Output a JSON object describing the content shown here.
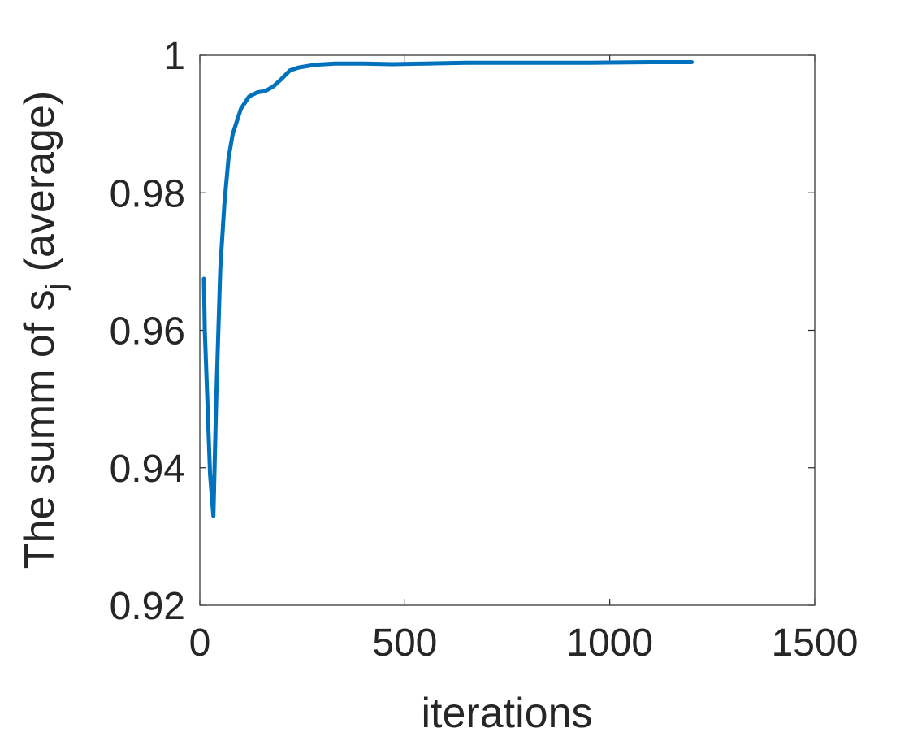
{
  "chart_data": {
    "type": "line",
    "title": "",
    "xlabel": "iterations",
    "ylabel_main": "The summ of s",
    "ylabel_sub": "j",
    "ylabel_tail": " (average)",
    "xlim": [
      0,
      1500
    ],
    "ylim": [
      0.92,
      1.0
    ],
    "xticks": [
      0,
      500,
      1000,
      1500
    ],
    "xtick_labels": [
      "0",
      "500",
      "1000",
      "1500"
    ],
    "yticks": [
      0.92,
      0.94,
      0.96,
      0.98,
      1.0
    ],
    "ytick_labels": [
      "0.92",
      "0.94",
      "0.96",
      "0.98",
      "1"
    ],
    "grid": false,
    "series_color": "#0072BD",
    "series": [
      {
        "x": [
          10,
          12,
          25,
          33,
          40,
          50,
          60,
          70,
          80,
          100,
          120,
          140,
          160,
          180,
          200,
          220,
          240,
          280,
          330,
          400,
          470,
          550,
          650,
          800,
          950,
          1100,
          1200
        ],
        "y": [
          0.9675,
          0.96,
          0.939,
          0.933,
          0.95,
          0.969,
          0.9785,
          0.985,
          0.9885,
          0.9922,
          0.994,
          0.9946,
          0.9948,
          0.9955,
          0.9966,
          0.9978,
          0.9982,
          0.9986,
          0.9988,
          0.9988,
          0.9987,
          0.9988,
          0.9989,
          0.9989,
          0.9989,
          0.999,
          0.999
        ]
      }
    ]
  }
}
